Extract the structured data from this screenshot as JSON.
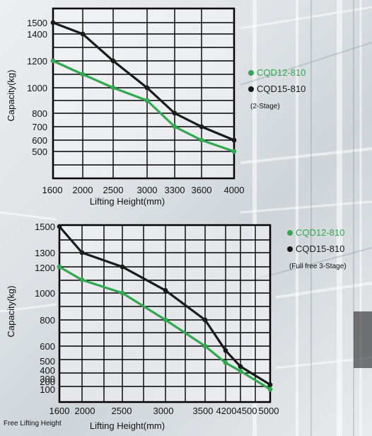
{
  "colors": {
    "green": "#2fa84f",
    "black": "#1a1a1a",
    "grid": "#000000",
    "plot_bg": "rgba(245,246,247,0.55)"
  },
  "chart_data": [
    {
      "type": "line",
      "xlabel": "Lifting Height(mm)",
      "ylabel": "Capacity(kg)",
      "x_ticks": [
        1600,
        2000,
        2500,
        3000,
        3300,
        3600,
        4000
      ],
      "y_ticks": [
        500,
        600,
        700,
        800,
        1000,
        1200,
        1400,
        1500
      ],
      "xlim": [
        1600,
        4000
      ],
      "ylim": [
        300,
        1620
      ],
      "grid": true,
      "legend_position": "right",
      "legend_note": "(2-Stage)",
      "series": [
        {
          "name": "CQD15-810",
          "color": "black",
          "x": [
            1600,
            2000,
            2500,
            3000,
            3300,
            3600,
            4000
          ],
          "y": [
            1500,
            1400,
            1200,
            1000,
            800,
            700,
            600
          ]
        },
        {
          "name": "CQD12-810",
          "color": "green",
          "x": [
            1600,
            2000,
            2500,
            3000,
            3300,
            3600,
            4000
          ],
          "y": [
            1200,
            1100,
            1000,
            900,
            700,
            600,
            500
          ]
        }
      ]
    },
    {
      "type": "line",
      "xlabel": "Lifting Height(mm)",
      "ylabel": "Capacity(kg)",
      "x_note": "Free Lifting Height",
      "x_ticks": [
        1600,
        2000,
        2500,
        3000,
        3500,
        4200,
        4500,
        5000
      ],
      "y_ticks": [
        100,
        200,
        300,
        400,
        500,
        600,
        800,
        1000,
        1200,
        1300,
        1500
      ],
      "xlim": [
        1600,
        5000
      ],
      "ylim": [
        0,
        1500
      ],
      "grid": true,
      "legend_position": "right",
      "legend_note": "(Full free 3-Stage)",
      "series": [
        {
          "name": "CQD15-810",
          "color": "black",
          "x": [
            1600,
            2000,
            2500,
            3000,
            3600,
            4200,
            4500,
            5000
          ],
          "y": [
            1500,
            1300,
            1200,
            1020,
            800,
            570,
            440,
            150
          ]
        },
        {
          "name": "CQD12-810",
          "color": "green",
          "x": [
            1600,
            2000,
            2500,
            3000,
            3600,
            4200,
            4500,
            5000
          ],
          "y": [
            1200,
            1100,
            1000,
            800,
            600,
            480,
            380,
            100
          ]
        }
      ]
    }
  ]
}
